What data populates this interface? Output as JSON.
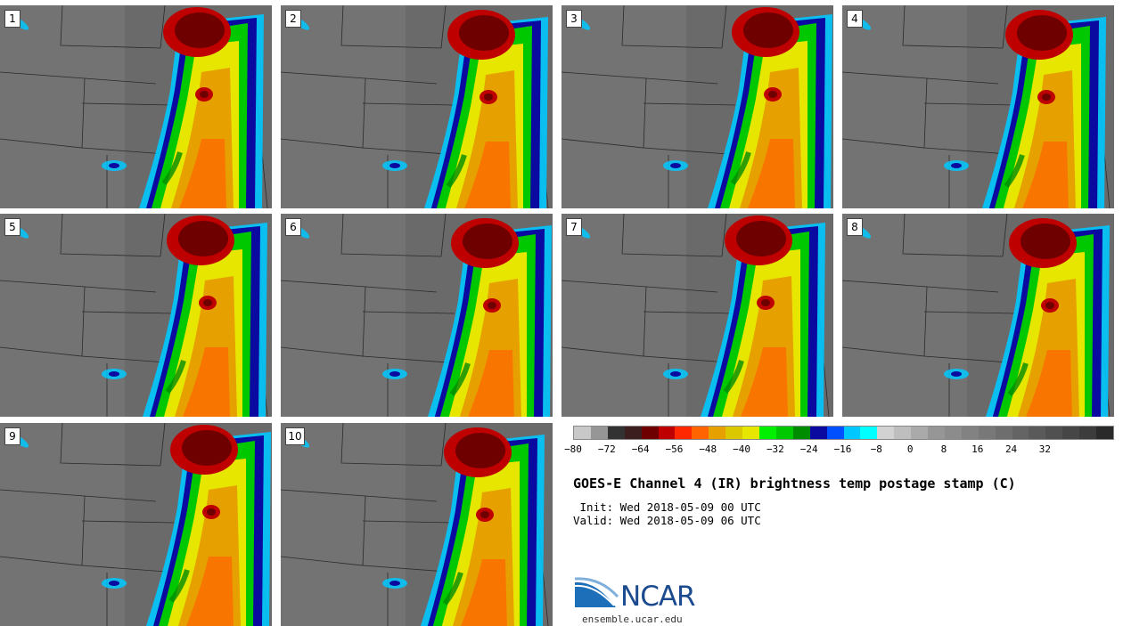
{
  "panels": [
    {
      "label": "1"
    },
    {
      "label": "2"
    },
    {
      "label": "3"
    },
    {
      "label": "4"
    },
    {
      "label": "5"
    },
    {
      "label": "6"
    },
    {
      "label": "7"
    },
    {
      "label": "8"
    },
    {
      "label": "9"
    },
    {
      "label": "10"
    }
  ],
  "colorbar": {
    "colors": [
      "#c8c8c8",
      "#969696",
      "#323232",
      "#3c1e1e",
      "#6e0000",
      "#be0000",
      "#ff2800",
      "#ff6400",
      "#e6a000",
      "#dcc800",
      "#e6e600",
      "#00f000",
      "#00c800",
      "#008c00",
      "#0a0aa0",
      "#0050ff",
      "#00c8ff",
      "#00ffff",
      "#d2d2d2",
      "#bebebe",
      "#aaaaaa",
      "#969696",
      "#8c8c8c",
      "#828282",
      "#787878",
      "#6e6e6e",
      "#646464",
      "#5a5a5a",
      "#505050",
      "#464646",
      "#3c3c3c",
      "#2a2a2a"
    ],
    "tick_labels": [
      "−80",
      "−72",
      "−64",
      "−56",
      "−48",
      "−40",
      "−32",
      "−24",
      "−16",
      "−8",
      "0",
      "8",
      "16",
      "24",
      "32"
    ]
  },
  "title": "GOES-E Channel 4 (IR) brightness temp postage stamp (C)",
  "init_line": " Init: Wed 2018-05-09 00 UTC",
  "valid_line": "Valid: Wed 2018-05-09 06 UTC",
  "logo_text": "NCAR",
  "website": "ensemble.ucar.edu"
}
